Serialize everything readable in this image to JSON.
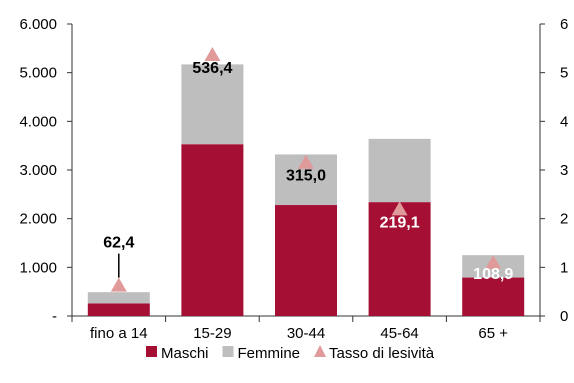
{
  "chart_data": {
    "type": "bar",
    "stacked": true,
    "categories": [
      "fino a 14",
      "15-29",
      "30-44",
      "45-64",
      "65 +"
    ],
    "series": [
      {
        "name": "Maschi",
        "kind": "bar",
        "axis": "left",
        "color": "#A50F34",
        "values": [
          260,
          3530,
          2280,
          2340,
          790
        ]
      },
      {
        "name": "Femmine",
        "kind": "bar",
        "axis": "left",
        "color": "#BEBEBE",
        "values": [
          230,
          1640,
          1040,
          1300,
          460
        ]
      },
      {
        "name": "Tasso di lesività",
        "kind": "marker",
        "axis": "right",
        "color": "#E09A9A",
        "values": [
          0.624,
          5.364,
          3.15,
          2.191,
          1.089
        ]
      }
    ],
    "data_labels": [
      "62,4",
      "536,4",
      "315,0",
      "219,1",
      "108,9"
    ],
    "data_label_colors": [
      "#000000",
      "#000000",
      "#000000",
      "#ffffff",
      "#ffffff"
    ],
    "y_left": {
      "min": 0,
      "max": 6000,
      "ticks": [
        0,
        1000,
        2000,
        3000,
        4000,
        5000,
        6000
      ],
      "tick_labels": [
        "-",
        "1.000",
        "2.000",
        "3.000",
        "4.000",
        "5.000",
        "6.000"
      ]
    },
    "y_right": {
      "min": 0,
      "max": 6,
      "ticks": [
        0,
        1,
        2,
        3,
        4,
        5,
        6
      ],
      "tick_labels": [
        "0",
        "1",
        "2",
        "3",
        "4",
        "5",
        "6"
      ]
    },
    "legend": {
      "position": "bottom"
    },
    "grid": false,
    "title": "",
    "xlabel": "",
    "ylabel": ""
  }
}
